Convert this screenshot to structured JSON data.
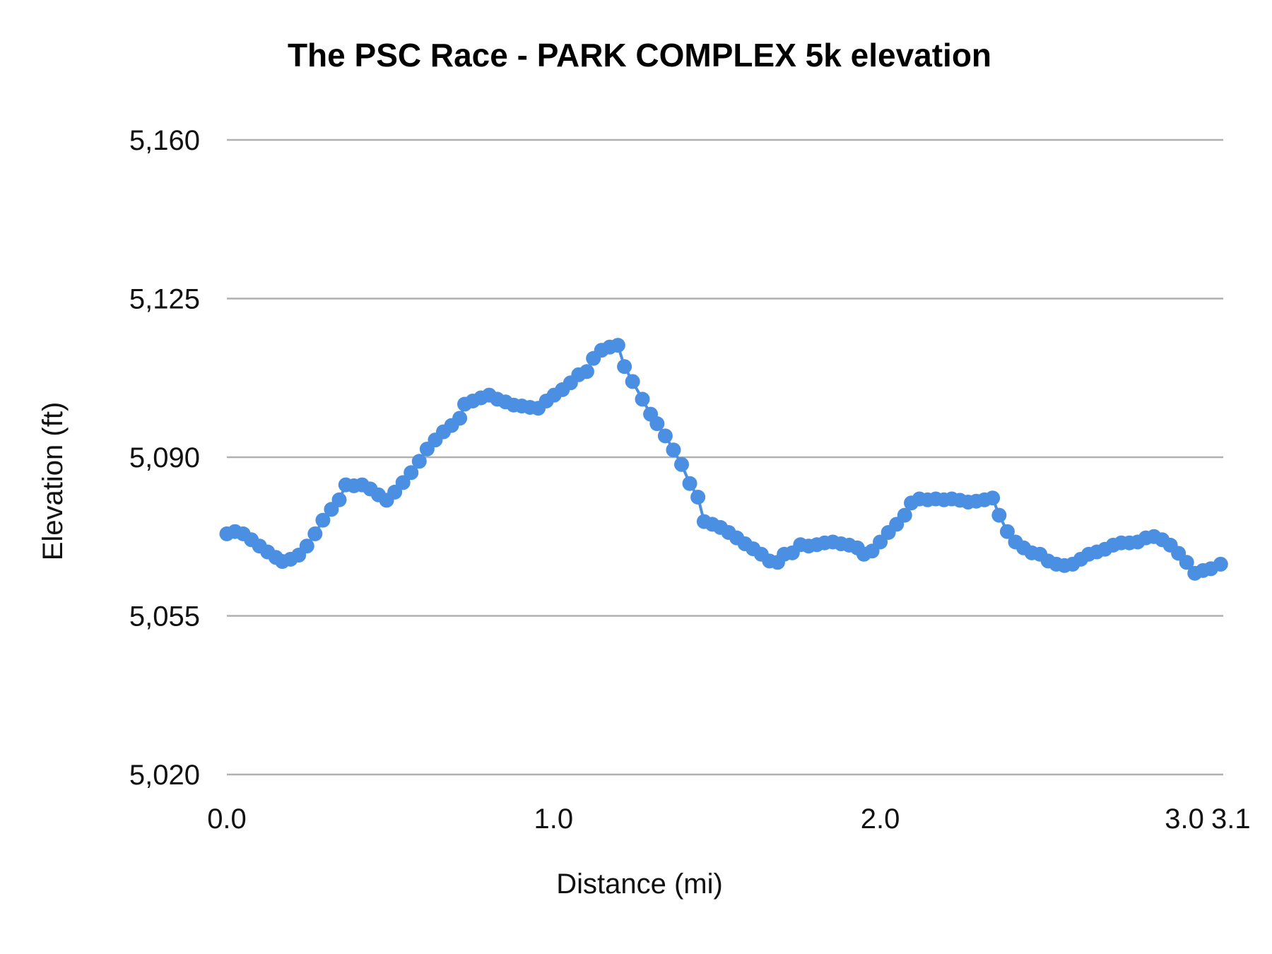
{
  "chart_data": {
    "type": "line",
    "title": "The PSC Race - PARK COMPLEX 5k elevation",
    "xlabel": "Distance (mi)",
    "ylabel": "Elevation (ft)",
    "xlim": [
      0,
      3.05
    ],
    "ylim": [
      5020,
      5160
    ],
    "xticks": [
      {
        "value": 0,
        "label": "0.0"
      },
      {
        "value": 1,
        "label": "1.0"
      },
      {
        "value": 2,
        "label": "2.0"
      },
      {
        "value": 3,
        "label": "3.0"
      },
      {
        "value": 3.05,
        "label": "3.1"
      }
    ],
    "yticks": [
      {
        "value": 5020,
        "label": "5,020"
      },
      {
        "value": 5055,
        "label": "5,055"
      },
      {
        "value": 5090,
        "label": "5,090"
      },
      {
        "value": 5125,
        "label": "5,125"
      },
      {
        "value": 5160,
        "label": "5,160"
      }
    ],
    "grid": true,
    "legend": "none",
    "series_color": "#4a8fe2",
    "grid_color": "#b0b0b0",
    "series": [
      {
        "x": [
          0,
          0.025,
          0.05,
          0.075,
          0.1,
          0.125,
          0.15,
          0.17,
          0.195,
          0.22,
          0.245,
          0.27,
          0.294,
          0.32,
          0.344,
          0.364,
          0.389,
          0.414,
          0.439,
          0.464,
          0.489,
          0.514,
          0.539,
          0.564,
          0.589,
          0.613,
          0.638,
          0.663,
          0.688,
          0.713,
          0.728,
          0.753,
          0.778,
          0.803,
          0.828,
          0.853,
          0.878,
          0.903,
          0.928,
          0.953,
          0.978,
          1.002,
          1.027,
          1.052,
          1.077,
          1.102,
          1.122,
          1.147,
          1.172,
          1.197,
          1.217,
          1.242,
          1.272,
          1.297,
          1.317,
          1.342,
          1.367,
          1.392,
          1.417,
          1.442,
          1.461,
          1.486,
          1.511,
          1.536,
          1.561,
          1.586,
          1.611,
          1.636,
          1.661,
          1.686,
          1.706,
          1.731,
          1.756,
          1.781,
          1.806,
          1.83,
          1.855,
          1.88,
          1.905,
          1.93,
          1.95,
          1.975,
          2.0,
          2.025,
          2.05,
          2.075,
          2.095,
          2.12,
          2.145,
          2.17,
          2.195,
          2.219,
          2.244,
          2.269,
          2.294,
          2.319,
          2.344,
          2.364,
          2.389,
          2.414,
          2.439,
          2.464,
          2.489,
          2.514,
          2.539,
          2.564,
          2.589,
          2.614,
          2.638,
          2.663,
          2.688,
          2.713,
          2.738,
          2.763,
          2.788,
          2.813,
          2.838,
          2.863,
          2.888,
          2.913,
          2.938,
          2.963,
          2.988,
          3.012,
          3.042
        ],
        "y": [
          5073.1,
          5073.6,
          5073.1,
          5071.8,
          5070.4,
          5069.1,
          5067.9,
          5067.0,
          5067.5,
          5068.4,
          5070.4,
          5073.1,
          5076.1,
          5078.5,
          5080.6,
          5083.9,
          5083.7,
          5083.9,
          5083.0,
          5081.7,
          5080.5,
          5082.3,
          5084.4,
          5086.6,
          5089.1,
          5091.8,
          5093.8,
          5095.6,
          5097.0,
          5098.6,
          5101.7,
          5102.4,
          5103.1,
          5103.7,
          5102.8,
          5102.2,
          5101.5,
          5101.3,
          5101.0,
          5100.8,
          5102.4,
          5103.7,
          5104.9,
          5106.4,
          5108.2,
          5108.9,
          5111.8,
          5113.6,
          5114.3,
          5114.7,
          5110.0,
          5106.7,
          5102.8,
          5099.5,
          5097.4,
          5094.7,
          5091.6,
          5088.4,
          5084.2,
          5081.2,
          5075.8,
          5075.2,
          5074.5,
          5073.4,
          5072.2,
          5070.9,
          5069.8,
          5068.6,
          5067.1,
          5066.8,
          5068.6,
          5068.9,
          5070.7,
          5070.4,
          5070.7,
          5071.1,
          5071.3,
          5070.9,
          5070.6,
          5070.0,
          5068.6,
          5069.3,
          5071.3,
          5073.4,
          5075.2,
          5077.2,
          5079.9,
          5080.8,
          5080.6,
          5080.8,
          5080.6,
          5080.8,
          5080.5,
          5080.1,
          5080.3,
          5080.6,
          5081.0,
          5077.2,
          5073.6,
          5071.3,
          5070.0,
          5068.9,
          5068.6,
          5067.1,
          5066.4,
          5066.1,
          5066.4,
          5067.5,
          5068.6,
          5069.1,
          5069.7,
          5070.6,
          5071.1,
          5071.1,
          5071.3,
          5072.2,
          5072.5,
          5071.8,
          5070.6,
          5068.8,
          5066.8,
          5064.4,
          5065.0,
          5065.4,
          5066.4
        ]
      }
    ]
  }
}
